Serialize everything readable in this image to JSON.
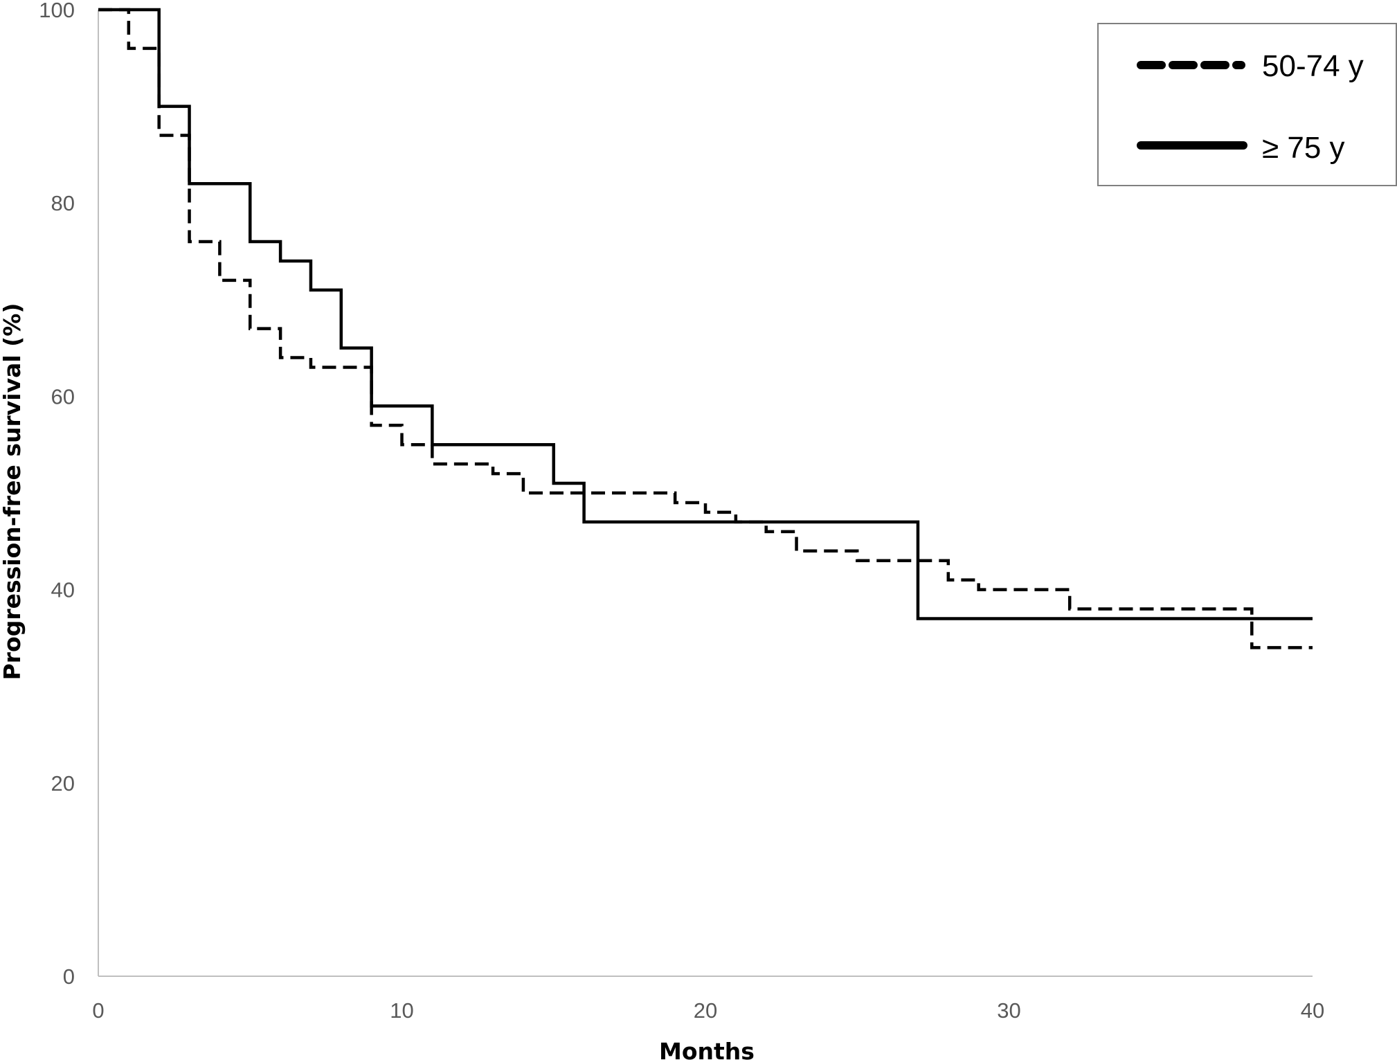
{
  "chart_data": {
    "type": "line",
    "step": true,
    "xlabel": "Months",
    "ylabel": "Progression-free survival (%)",
    "xlim": [
      0,
      40
    ],
    "ylim": [
      0,
      100
    ],
    "xticks": [
      0,
      10,
      20,
      30,
      40
    ],
    "yticks": [
      0,
      20,
      40,
      60,
      80,
      100
    ],
    "grid": false,
    "legend_position": "top-right",
    "series": [
      {
        "name": "50-74 y",
        "style": "dashed",
        "color": "#000000",
        "x": [
          0,
          1,
          2,
          3,
          4,
          5,
          6,
          7,
          9,
          10,
          11,
          13,
          14,
          19,
          20,
          21,
          22,
          23,
          25,
          28,
          29,
          32,
          38,
          40
        ],
        "y": [
          100,
          96,
          87,
          76,
          72,
          67,
          64,
          63,
          57,
          55,
          53,
          52,
          50,
          49,
          48,
          47,
          46,
          44,
          43,
          41,
          40,
          38,
          34,
          34
        ]
      },
      {
        "name": "≥ 75 y",
        "style": "solid",
        "color": "#000000",
        "x": [
          0,
          2,
          3,
          5,
          6,
          7,
          8,
          9,
          11,
          15,
          16,
          27,
          40
        ],
        "y": [
          100,
          90,
          82,
          76,
          74,
          71,
          65,
          59,
          55,
          51,
          47,
          37,
          37
        ]
      }
    ]
  }
}
